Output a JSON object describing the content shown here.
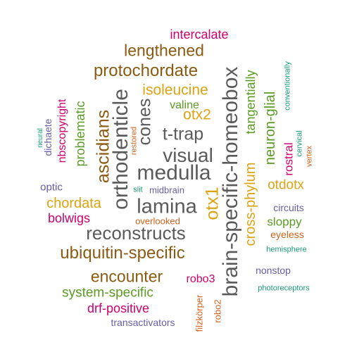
{
  "colors": {
    "gray": "#5a5a5a",
    "brown": "#8c5a12",
    "gold": "#dca313",
    "green": "#5b9a23",
    "magenta": "#d1006b",
    "orange": "#d0601a",
    "purple": "#6a5ca8",
    "teal": "#1a9a78"
  },
  "words": {
    "brain_specific_homeobox": "brain-specific-homeobox",
    "orthodenticle": "orthodenticle",
    "medulla": "medulla",
    "lamina": "lamina",
    "visual": "visual",
    "reconstructs": "reconstructs",
    "cones": "cones",
    "t_trap": "t-trap",
    "otx1": "otx1",
    "ubiquitin_specific": "ubiquitin-specific",
    "protochordate": "protochordate",
    "encounter": "encounter",
    "lengthened": "lengthened",
    "ascidians": "ascidians",
    "cross_phylum": "cross-phylum",
    "otx2": "otx2",
    "isoleucine": "isoleucine",
    "chordata": "chordata",
    "otdotx": "otdotx",
    "neuron_glial": "neuron-glial",
    "tangentially": "tangentially",
    "system_specific": "system-specific",
    "problematic": "problematic",
    "sloppy": "sloppy",
    "valine": "valine",
    "intercalate": "intercalate",
    "nbscopyright": "nbscopyright",
    "rostral": "rostral",
    "drf_positive": "drf-positive",
    "bolwigs": "bolwigs",
    "robo3": "robo3",
    "eyeless": "eyeless",
    "dichaete": "dichaete",
    "filzkorper": "filzkörper",
    "robo2": "robo2",
    "optic": "optic",
    "nonstop": "nonstop",
    "circuits": "circuits",
    "overlooked": "overlooked",
    "midbrain": "midbrain",
    "restored": "restored",
    "transactivators": "transactivators",
    "cervical": "cervical",
    "vertex": "vertex",
    "conventionally": "conventionally",
    "neural": "neural",
    "slit": "slit",
    "hemisphere": "hemisphere",
    "photoreceptors": "photoreceptors"
  }
}
